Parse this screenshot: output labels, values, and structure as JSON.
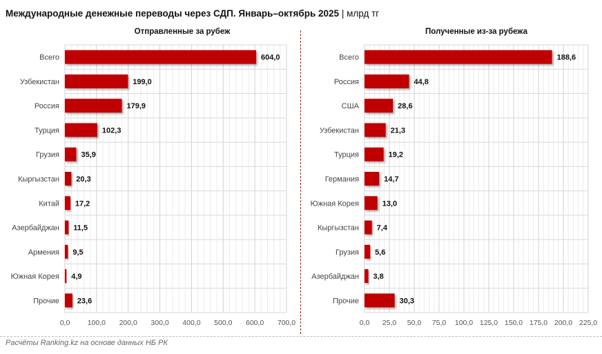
{
  "title": "Международные денежные переводы через СДП. Январь–октябрь 2025",
  "unit": "| млрд тг",
  "source": "Расчёты Ranking.kz на основе данных НБ РК",
  "colors": {
    "bar": "#c00000",
    "grid": "#d9d9d9"
  },
  "chart_data": [
    {
      "type": "bar",
      "orientation": "horizontal",
      "title": "Отправленные за рубеж",
      "categories": [
        "Всего",
        "Узбекистан",
        "Россия",
        "Турция",
        "Грузия",
        "Кыргызстан",
        "Китай",
        "Азербайджан",
        "Армения",
        "Южная Корея",
        "Прочие"
      ],
      "values": [
        604.0,
        199.0,
        179.9,
        102.3,
        35.9,
        20.3,
        17.2,
        11.5,
        9.5,
        4.9,
        23.6
      ],
      "labels": [
        "604,0",
        "199,0",
        "179,9",
        "102,3",
        "35,9",
        "20,3",
        "17,2",
        "11,5",
        "9,5",
        "4,9",
        "23,6"
      ],
      "xlim": [
        0,
        700
      ],
      "ticks": [
        "0,0",
        "100,0",
        "200,0",
        "300,0",
        "400,0",
        "500,0",
        "600,0",
        "700,0"
      ],
      "tick_step": 100,
      "grid": true
    },
    {
      "type": "bar",
      "orientation": "horizontal",
      "title": "Полученные из-за рубежа",
      "categories": [
        "Всего",
        "Россия",
        "США",
        "Узбекистан",
        "Турция",
        "Германия",
        "Южная Корея",
        "Кыргызстан",
        "Грузия",
        "Азербайджан",
        "Прочие"
      ],
      "values": [
        188.6,
        44.8,
        28.6,
        21.3,
        19.2,
        14.7,
        13.0,
        7.4,
        5.6,
        3.8,
        30.3
      ],
      "labels": [
        "188,6",
        "44,8",
        "28,6",
        "21,3",
        "19,2",
        "14,7",
        "13,0",
        "7,4",
        "5,6",
        "3,8",
        "30,3"
      ],
      "xlim": [
        0,
        225
      ],
      "ticks": [
        "0,0",
        "25,0",
        "50,0",
        "75,0",
        "100,0",
        "125,0",
        "150,0",
        "175,0",
        "200,0",
        "225,0"
      ],
      "tick_step": 25,
      "grid": true
    }
  ]
}
